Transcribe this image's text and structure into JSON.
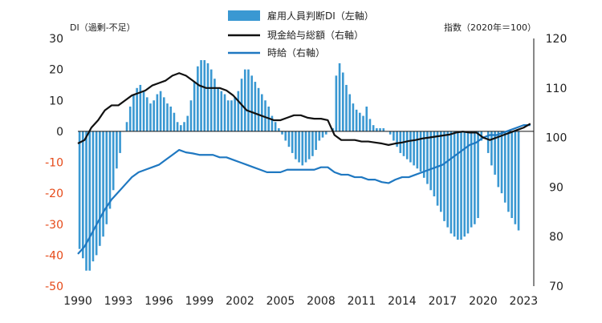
{
  "chart_data": {
    "type": "bar+line",
    "left_axis": {
      "label": "DI（過剰-不足）",
      "ylim": [
        -50,
        30
      ],
      "ticks": [
        30,
        20,
        10,
        0,
        -10,
        -20,
        -30,
        -40,
        -50
      ],
      "tick_labels": [
        "30",
        "20",
        "10",
        "0",
        "-10",
        "-20",
        "-30",
        "-40",
        "-50"
      ],
      "positive_color": "#222222",
      "negative_color": "#e64a19"
    },
    "right_axis": {
      "label": "指数（2020年＝100）",
      "ylim": [
        70,
        120
      ],
      "ticks": [
        120,
        110,
        100,
        90,
        80,
        70
      ],
      "tick_labels": [
        "120",
        "110",
        "100",
        "90",
        "80",
        "70"
      ]
    },
    "x_axis": {
      "range": [
        1990,
        2023.75
      ],
      "ticks": [
        1990,
        1993,
        1996,
        1999,
        2002,
        2005,
        2008,
        2011,
        2014,
        2017,
        2020,
        2023
      ],
      "tick_labels": [
        "1990",
        "1993",
        "1996",
        "1999",
        "2002",
        "2005",
        "2008",
        "2011",
        "2014",
        "2017",
        "2020",
        "2023"
      ]
    },
    "legend": {
      "placement": "top-center",
      "items": [
        {
          "label": "雇用人員判断DI（左軸）",
          "kind": "bar",
          "color": "#3a98d2"
        },
        {
          "label": "現金給与総額（右軸）",
          "kind": "line",
          "color": "#111111"
        },
        {
          "label": "時給（右軸）",
          "kind": "line",
          "color": "#1f78c1"
        }
      ]
    },
    "series": [
      {
        "name": "雇用人員判断DI（左軸）",
        "axis": "left",
        "type": "bar",
        "color": "#3a98d2",
        "x_start": 1990.0,
        "x_step": 0.25,
        "values": [
          -38,
          -41,
          -45,
          -45,
          -42,
          -40,
          -37,
          -34,
          -30,
          -25,
          -19,
          -12,
          -7,
          0,
          3,
          8,
          12,
          14,
          15,
          13,
          11,
          9,
          10,
          12,
          13,
          11,
          9,
          8,
          6,
          3,
          2,
          3,
          5,
          10,
          16,
          21,
          23,
          23,
          22,
          20,
          17,
          14,
          13,
          12,
          10,
          10,
          11,
          13,
          17,
          20,
          20,
          18,
          16,
          14,
          12,
          10,
          8,
          5,
          3,
          1,
          -1,
          -3,
          -5,
          -7,
          -9,
          -10,
          -11,
          -10,
          -9,
          -8,
          -6,
          -3,
          -2,
          -1,
          0,
          1,
          18,
          22,
          19,
          15,
          12,
          9,
          7,
          6,
          5,
          8,
          4,
          2,
          1,
          1,
          1,
          0,
          -1,
          -3,
          -5,
          -7,
          -8,
          -9,
          -10,
          -11,
          -12,
          -13,
          -15,
          -17,
          -19,
          -21,
          -24,
          -26,
          -29,
          -31,
          -33,
          -34,
          -35,
          -35,
          -34,
          -33,
          -31,
          -30,
          -28,
          -3,
          0,
          -7,
          -11,
          -14,
          -18,
          -20,
          -23,
          -26,
          -28,
          -30,
          -32
        ]
      },
      {
        "name": "現金給与総額（右軸）",
        "axis": "right",
        "type": "line",
        "color": "#111111",
        "points": [
          [
            1990.0,
            98.8
          ],
          [
            1990.5,
            99.5
          ],
          [
            1991.0,
            102.0
          ],
          [
            1991.5,
            103.5
          ],
          [
            1992.0,
            105.5
          ],
          [
            1992.5,
            106.5
          ],
          [
            1993.0,
            106.5
          ],
          [
            1993.5,
            107.5
          ],
          [
            1994.0,
            108.5
          ],
          [
            1994.5,
            109.0
          ],
          [
            1995.0,
            109.5
          ],
          [
            1995.5,
            110.5
          ],
          [
            1996.0,
            111.0
          ],
          [
            1996.5,
            111.5
          ],
          [
            1997.0,
            112.5
          ],
          [
            1997.5,
            113.0
          ],
          [
            1998.0,
            112.5
          ],
          [
            1998.5,
            111.5
          ],
          [
            1999.0,
            110.5
          ],
          [
            1999.5,
            110.0
          ],
          [
            2000.0,
            110.0
          ],
          [
            2000.5,
            110.0
          ],
          [
            2001.0,
            109.5
          ],
          [
            2001.5,
            108.5
          ],
          [
            2002.0,
            107.0
          ],
          [
            2002.5,
            105.5
          ],
          [
            2003.0,
            105.0
          ],
          [
            2003.5,
            104.5
          ],
          [
            2004.0,
            104.0
          ],
          [
            2004.5,
            103.5
          ],
          [
            2005.0,
            103.5
          ],
          [
            2005.5,
            104.0
          ],
          [
            2006.0,
            104.5
          ],
          [
            2006.5,
            104.5
          ],
          [
            2007.0,
            104.0
          ],
          [
            2007.5,
            103.8
          ],
          [
            2008.0,
            103.8
          ],
          [
            2008.5,
            103.5
          ],
          [
            2009.0,
            100.5
          ],
          [
            2009.5,
            99.5
          ],
          [
            2010.0,
            99.5
          ],
          [
            2010.5,
            99.5
          ],
          [
            2011.0,
            99.2
          ],
          [
            2011.5,
            99.2
          ],
          [
            2012.0,
            99.0
          ],
          [
            2012.5,
            98.8
          ],
          [
            2013.0,
            98.5
          ],
          [
            2013.5,
            98.8
          ],
          [
            2014.0,
            99.0
          ],
          [
            2014.5,
            99.3
          ],
          [
            2015.0,
            99.5
          ],
          [
            2015.5,
            99.8
          ],
          [
            2016.0,
            100.0
          ],
          [
            2016.5,
            100.2
          ],
          [
            2017.0,
            100.4
          ],
          [
            2017.5,
            100.6
          ],
          [
            2018.0,
            101.0
          ],
          [
            2018.5,
            101.2
          ],
          [
            2019.0,
            101.0
          ],
          [
            2019.5,
            101.0
          ],
          [
            2020.0,
            100.0
          ],
          [
            2020.5,
            99.5
          ],
          [
            2021.0,
            100.0
          ],
          [
            2021.5,
            100.5
          ],
          [
            2022.0,
            101.0
          ],
          [
            2022.5,
            101.5
          ],
          [
            2023.0,
            102.0
          ],
          [
            2023.5,
            102.8
          ]
        ]
      },
      {
        "name": "時給（右軸）",
        "axis": "right",
        "type": "line",
        "color": "#1f78c1",
        "points": [
          [
            1990.0,
            76.5
          ],
          [
            1990.5,
            78.0
          ],
          [
            1991.0,
            80.5
          ],
          [
            1991.5,
            83.0
          ],
          [
            1992.0,
            85.5
          ],
          [
            1992.5,
            87.5
          ],
          [
            1993.0,
            89.0
          ],
          [
            1993.5,
            90.5
          ],
          [
            1994.0,
            92.0
          ],
          [
            1994.5,
            93.0
          ],
          [
            1995.0,
            93.5
          ],
          [
            1995.5,
            94.0
          ],
          [
            1996.0,
            94.5
          ],
          [
            1996.5,
            95.5
          ],
          [
            1997.0,
            96.5
          ],
          [
            1997.5,
            97.5
          ],
          [
            1998.0,
            97.0
          ],
          [
            1998.5,
            96.8
          ],
          [
            1999.0,
            96.5
          ],
          [
            1999.5,
            96.5
          ],
          [
            2000.0,
            96.5
          ],
          [
            2000.5,
            96.0
          ],
          [
            2001.0,
            96.0
          ],
          [
            2001.5,
            95.5
          ],
          [
            2002.0,
            95.0
          ],
          [
            2002.5,
            94.5
          ],
          [
            2003.0,
            94.0
          ],
          [
            2003.5,
            93.5
          ],
          [
            2004.0,
            93.0
          ],
          [
            2004.5,
            93.0
          ],
          [
            2005.0,
            93.0
          ],
          [
            2005.5,
            93.5
          ],
          [
            2006.0,
            93.5
          ],
          [
            2006.5,
            93.5
          ],
          [
            2007.0,
            93.5
          ],
          [
            2007.5,
            93.5
          ],
          [
            2008.0,
            94.0
          ],
          [
            2008.5,
            94.0
          ],
          [
            2009.0,
            93.0
          ],
          [
            2009.5,
            92.5
          ],
          [
            2010.0,
            92.5
          ],
          [
            2010.5,
            92.0
          ],
          [
            2011.0,
            92.0
          ],
          [
            2011.5,
            91.5
          ],
          [
            2012.0,
            91.5
          ],
          [
            2012.5,
            91.0
          ],
          [
            2013.0,
            90.8
          ],
          [
            2013.5,
            91.5
          ],
          [
            2014.0,
            92.0
          ],
          [
            2014.5,
            92.0
          ],
          [
            2015.0,
            92.5
          ],
          [
            2015.5,
            93.0
          ],
          [
            2016.0,
            93.5
          ],
          [
            2016.5,
            94.0
          ],
          [
            2017.0,
            94.5
          ],
          [
            2017.5,
            95.5
          ],
          [
            2018.0,
            96.5
          ],
          [
            2018.5,
            97.5
          ],
          [
            2019.0,
            98.5
          ],
          [
            2019.5,
            99.0
          ],
          [
            2020.0,
            100.0
          ],
          [
            2020.5,
            100.5
          ],
          [
            2021.0,
            100.5
          ],
          [
            2021.5,
            101.0
          ],
          [
            2022.0,
            101.5
          ],
          [
            2022.5,
            102.0
          ],
          [
            2023.0,
            102.5
          ],
          [
            2023.5,
            102.5
          ]
        ]
      }
    ]
  }
}
